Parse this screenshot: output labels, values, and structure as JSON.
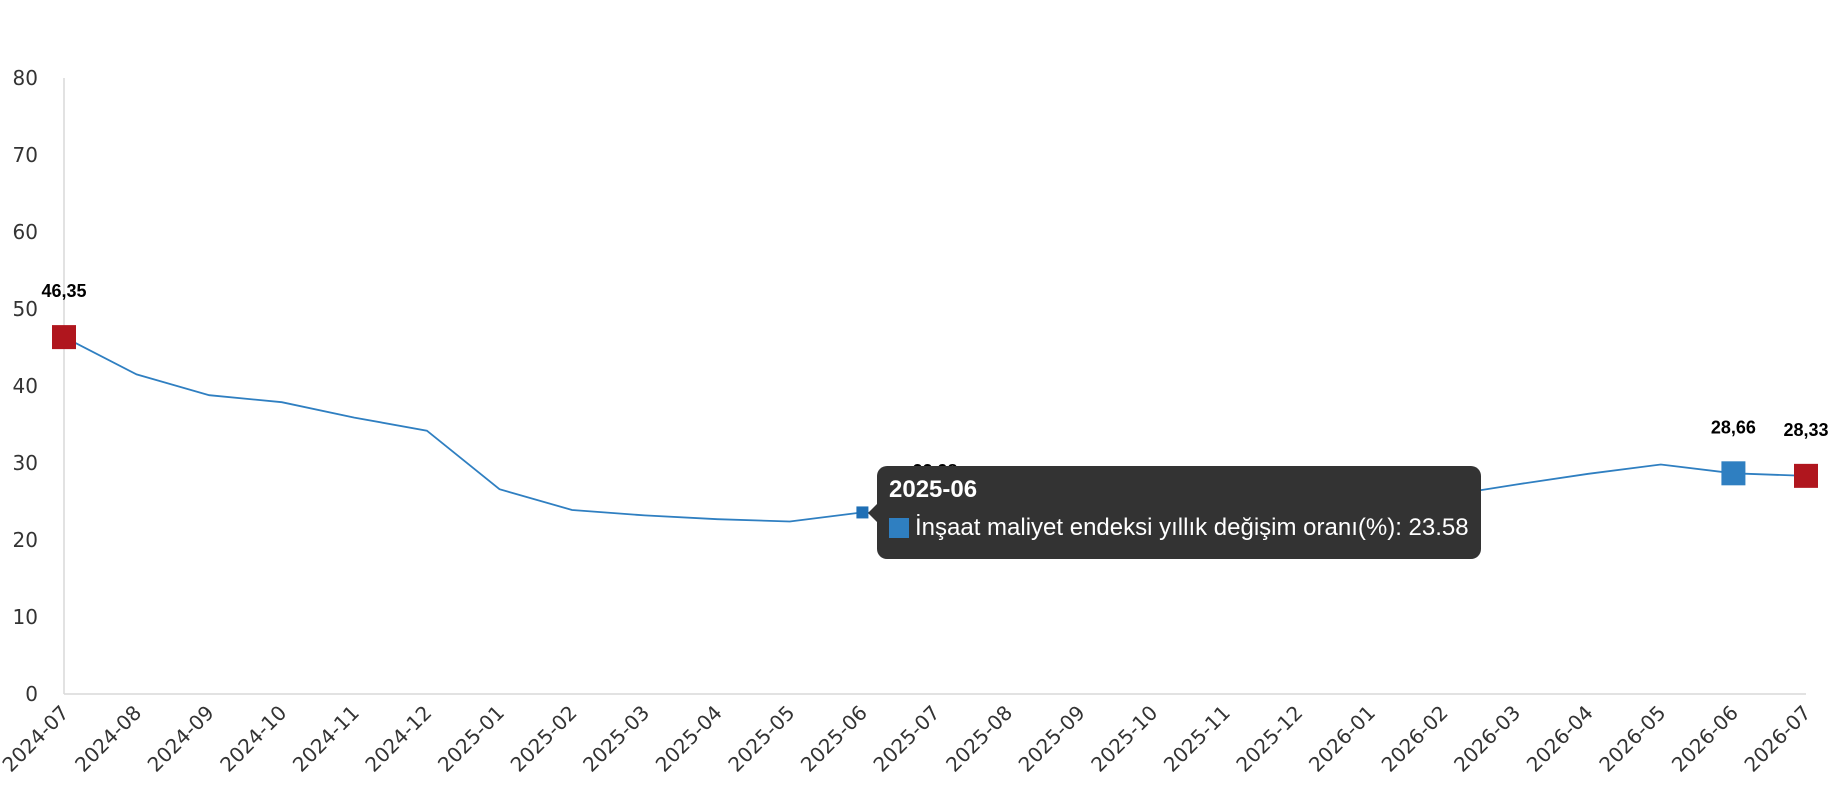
{
  "chart_data": {
    "type": "line",
    "categories": [
      "2024-07",
      "2024-08",
      "2024-09",
      "2024-10",
      "2024-11",
      "2024-12",
      "2025-01",
      "2025-02",
      "2025-03",
      "2025-04",
      "2025-05",
      "2025-06",
      "2025-07",
      "2025-08",
      "2025-09",
      "2025-10",
      "2025-11",
      "2025-12",
      "2026-01",
      "2026-02",
      "2026-03",
      "2026-04",
      "2026-05",
      "2026-06",
      "2026-07"
    ],
    "series": [
      {
        "name": "İnşaat maliyet endeksi yıllık değişim oranı(%)",
        "color": "#2f7fc1",
        "values": [
          46.35,
          41.5,
          38.8,
          37.9,
          35.9,
          34.2,
          26.6,
          23.9,
          23.2,
          22.7,
          22.4,
          23.58,
          22.98,
          22.7,
          23.0,
          22.4,
          24.0,
          24.6,
          25.3,
          25.7,
          27.2,
          28.6,
          29.8,
          28.66,
          28.33
        ]
      }
    ],
    "ylim": [
      0,
      80
    ],
    "yticks": [
      "0",
      "10",
      "20",
      "30",
      "40",
      "50",
      "60",
      "70",
      "80"
    ],
    "markers": [
      {
        "index": 0,
        "label": "46,35",
        "color": "#b0161e",
        "size": "large"
      },
      {
        "index": 11,
        "label": "",
        "color": "#1f6fb5",
        "size": "small"
      },
      {
        "index": 12,
        "label": "22,98",
        "color": "#3a0b0b",
        "size": "large"
      },
      {
        "index": 23,
        "label": "28,66",
        "color": "#2f7fc1",
        "size": "large"
      },
      {
        "index": 24,
        "label": "28,33",
        "color": "#b0161e",
        "size": "large"
      }
    ],
    "grid": false,
    "legend": "none"
  },
  "tooltip": {
    "title": "2025-06",
    "series_name": "İnşaat maliyet endeksi yıllık değişim oranı(%)",
    "value": "23.58",
    "text": "İnşaat maliyet endeksi yıllık değişim oranı(%): 23.58"
  }
}
